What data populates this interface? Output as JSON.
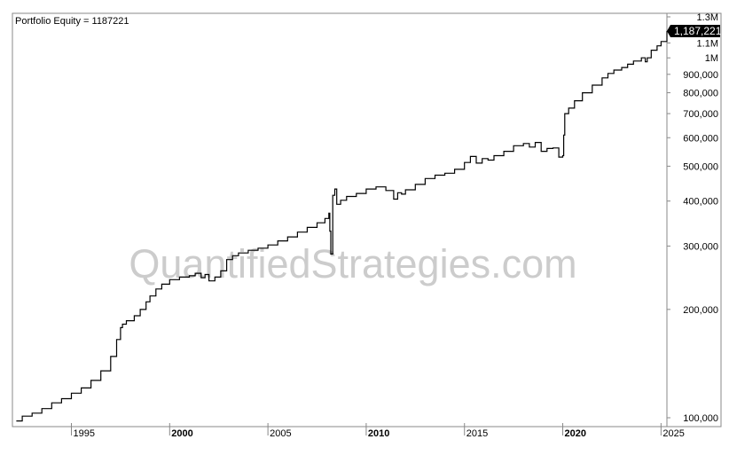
{
  "chart_data": {
    "type": "line",
    "title": "Portfolio Equity = 1187221",
    "watermark": "QuantifiedStrategies.com",
    "last_value_label": "1,187,221",
    "y_scale": "log",
    "grid": false,
    "xlim": [
      1992.0,
      2025.3
    ],
    "ylim": [
      95000,
      1330000
    ],
    "x_ticks": [
      {
        "label": "1995",
        "value": 1995,
        "bold": false
      },
      {
        "label": "2000",
        "value": 2000,
        "bold": true
      },
      {
        "label": "2005",
        "value": 2005,
        "bold": false
      },
      {
        "label": "2010",
        "value": 2010,
        "bold": true
      },
      {
        "label": "2015",
        "value": 2015,
        "bold": false
      },
      {
        "label": "2020",
        "value": 2020,
        "bold": true
      },
      {
        "label": "2025",
        "value": 2025,
        "bold": false
      }
    ],
    "y_ticks": [
      {
        "label": "100,000",
        "value": 100000
      },
      {
        "label": "200,000",
        "value": 200000
      },
      {
        "label": "300,000",
        "value": 300000
      },
      {
        "label": "400,000",
        "value": 400000
      },
      {
        "label": "500,000",
        "value": 500000
      },
      {
        "label": "600,000",
        "value": 600000
      },
      {
        "label": "700,000",
        "value": 700000
      },
      {
        "label": "800,000",
        "value": 800000
      },
      {
        "label": "900,000",
        "value": 900000
      },
      {
        "label": "1M",
        "value": 1000000
      },
      {
        "label": "1.1M",
        "value": 1100000
      },
      {
        "label": "1.3M",
        "value": 1300000
      }
    ],
    "series": [
      {
        "color": "#000000",
        "x": [
          1992.2,
          1992.5,
          1993.0,
          1993.5,
          1994.0,
          1994.5,
          1995.0,
          1995.5,
          1996.0,
          1996.5,
          1997.0,
          1997.3,
          1997.5,
          1997.6,
          1997.8,
          1998.2,
          1998.5,
          1998.8,
          1999.0,
          1999.3,
          1999.6,
          2000.0,
          2000.5,
          2001.0,
          2001.3,
          2001.6,
          2001.8,
          2002.0,
          2002.3,
          2002.6,
          2002.9,
          2003.2,
          2003.5,
          2004.0,
          2004.5,
          2005.0,
          2005.5,
          2006.0,
          2006.5,
          2007.0,
          2007.5,
          2007.9,
          2008.1,
          2008.15,
          2008.2,
          2008.3,
          2008.4,
          2008.5,
          2008.7,
          2009.0,
          2009.5,
          2010.0,
          2010.5,
          2011.0,
          2011.4,
          2011.6,
          2011.8,
          2012.0,
          2012.5,
          2013.0,
          2013.5,
          2014.0,
          2014.5,
          2015.0,
          2015.3,
          2015.6,
          2015.9,
          2016.2,
          2016.5,
          2017.0,
          2017.5,
          2018.0,
          2018.3,
          2018.6,
          2018.9,
          2019.2,
          2019.5,
          2019.8,
          2020.0,
          2020.05,
          2020.1,
          2020.3,
          2020.6,
          2021.0,
          2021.5,
          2022.0,
          2022.3,
          2022.6,
          2023.0,
          2023.3,
          2023.6,
          2024.0,
          2024.2,
          2024.3,
          2024.5,
          2024.8,
          2025.0,
          2025.3
        ],
        "values": [
          98000,
          101000,
          103000,
          106000,
          110000,
          113000,
          117000,
          121000,
          127000,
          135000,
          148000,
          165000,
          178000,
          182000,
          186000,
          192000,
          200000,
          210000,
          218000,
          228000,
          235000,
          242000,
          246000,
          248000,
          252000,
          245000,
          250000,
          240000,
          246000,
          256000,
          275000,
          282000,
          287000,
          292000,
          296000,
          302000,
          310000,
          318000,
          328000,
          338000,
          348000,
          358000,
          370000,
          330000,
          285000,
          415000,
          432000,
          392000,
          402000,
          412000,
          420000,
          432000,
          438000,
          428000,
          405000,
          422000,
          418000,
          430000,
          445000,
          462000,
          472000,
          478000,
          490000,
          512000,
          532000,
          510000,
          525000,
          520000,
          535000,
          550000,
          570000,
          578000,
          565000,
          582000,
          550000,
          560000,
          562000,
          530000,
          535000,
          610000,
          700000,
          725000,
          760000,
          800000,
          840000,
          880000,
          905000,
          925000,
          940000,
          960000,
          980000,
          1000000,
          975000,
          1000000,
          1050000,
          1080000,
          1110000,
          1187221
        ]
      }
    ]
  }
}
